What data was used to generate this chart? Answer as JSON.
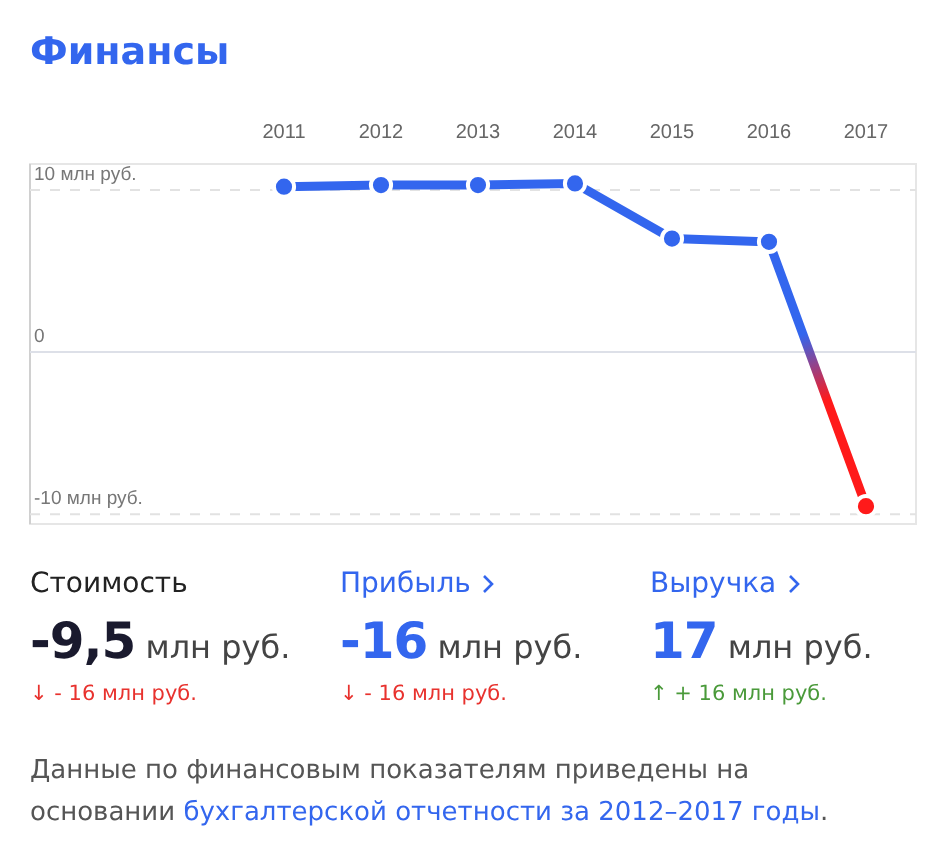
{
  "chart_data": {
    "type": "line",
    "title": "Финансы",
    "categories": [
      "2011",
      "2012",
      "2013",
      "2014",
      "2015",
      "2016",
      "2017"
    ],
    "series": [
      {
        "color": "#3366ee",
        "colors": [
          "#3366ee",
          "#3366ee",
          "#3366ee",
          "#3366ee",
          "#3366ee",
          "#3366ee",
          "#ff1a1a"
        ],
        "values": [
          10.2,
          10.3,
          10.3,
          10.4,
          7.0,
          6.8,
          -9.5
        ]
      }
    ],
    "ylim": [
      -10.6,
      11.6
    ],
    "yticks": [
      {
        "value": 10,
        "label": "10 млн руб."
      },
      0,
      {
        "value": -10,
        "label": "-10 млн руб."
      }
    ],
    "grid": "y",
    "marker": "circle",
    "line_style": "solid",
    "annotations": [
      "Стоимость",
      "-9,5",
      "млн руб.",
      "↓ - 16 млн руб.",
      "Прибыль",
      "-16",
      "млн руб.",
      "↓ - 16 млн руб.",
      "Выручка",
      "17",
      "млн руб.",
      "↑ + 16 млн руб.",
      "Данные по финансовым показателям приведены на основании ",
      "бухгалтерской отчетности за 2012–2017 годы",
      "."
    ]
  }
}
